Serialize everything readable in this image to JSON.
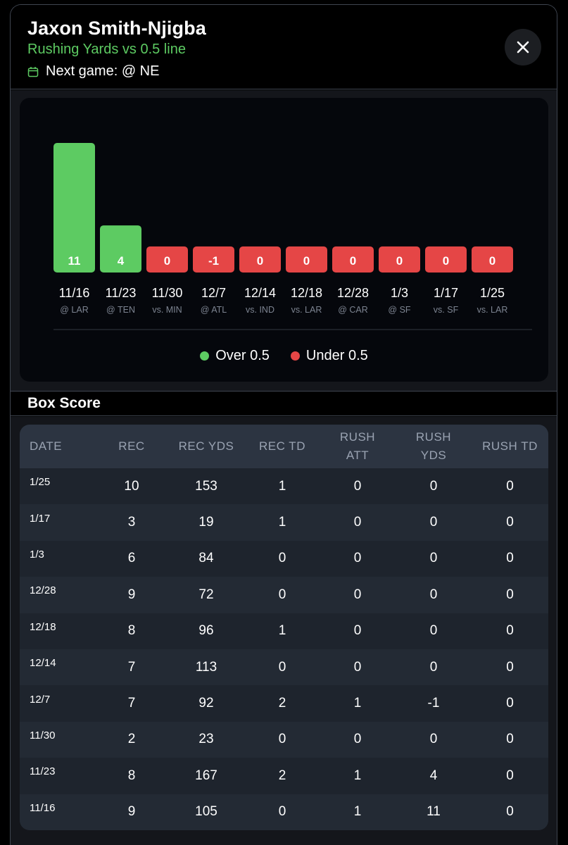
{
  "header": {
    "title": "Jaxon Smith-Njigba",
    "subtitle": "Rushing Yards vs 0.5 line",
    "next_game": "Next game: @ NE"
  },
  "colors": {
    "over": "#5dcb62",
    "under": "#e54646"
  },
  "chart_data": {
    "type": "bar",
    "line": 0.5,
    "categories": [
      "11/16",
      "11/23",
      "11/30",
      "12/7",
      "12/14",
      "12/18",
      "12/28",
      "1/3",
      "1/17",
      "1/25"
    ],
    "opponents": [
      "@ LAR",
      "@ TEN",
      "vs. MIN",
      "@ ATL",
      "vs. IND",
      "vs. LAR",
      "@ CAR",
      "@ SF",
      "vs. SF",
      "vs. LAR"
    ],
    "values": [
      11,
      4,
      0,
      -1,
      0,
      0,
      0,
      0,
      0,
      0
    ],
    "labels": [
      "11",
      "4",
      "0",
      "-1",
      "0",
      "0",
      "0",
      "0",
      "0",
      "0"
    ],
    "legend": [
      {
        "label": "Over 0.5",
        "color": "#5dcb62"
      },
      {
        "label": "Under 0.5",
        "color": "#e54646"
      }
    ]
  },
  "box_score": {
    "title": "Box Score",
    "columns": [
      "DATE",
      "REC",
      "REC YDS",
      "REC TD",
      "RUSH\nATT",
      "RUSH\nYDS",
      "RUSH TD"
    ],
    "rows": [
      [
        "1/25",
        "10",
        "153",
        "1",
        "0",
        "0",
        "0"
      ],
      [
        "1/17",
        "3",
        "19",
        "1",
        "0",
        "0",
        "0"
      ],
      [
        "1/3",
        "6",
        "84",
        "0",
        "0",
        "0",
        "0"
      ],
      [
        "12/28",
        "9",
        "72",
        "0",
        "0",
        "0",
        "0"
      ],
      [
        "12/18",
        "8",
        "96",
        "1",
        "0",
        "0",
        "0"
      ],
      [
        "12/14",
        "7",
        "113",
        "0",
        "0",
        "0",
        "0"
      ],
      [
        "12/7",
        "7",
        "92",
        "2",
        "1",
        "-1",
        "0"
      ],
      [
        "11/30",
        "2",
        "23",
        "0",
        "0",
        "0",
        "0"
      ],
      [
        "11/23",
        "8",
        "167",
        "2",
        "1",
        "4",
        "0"
      ],
      [
        "11/16",
        "9",
        "105",
        "0",
        "1",
        "11",
        "0"
      ]
    ]
  }
}
